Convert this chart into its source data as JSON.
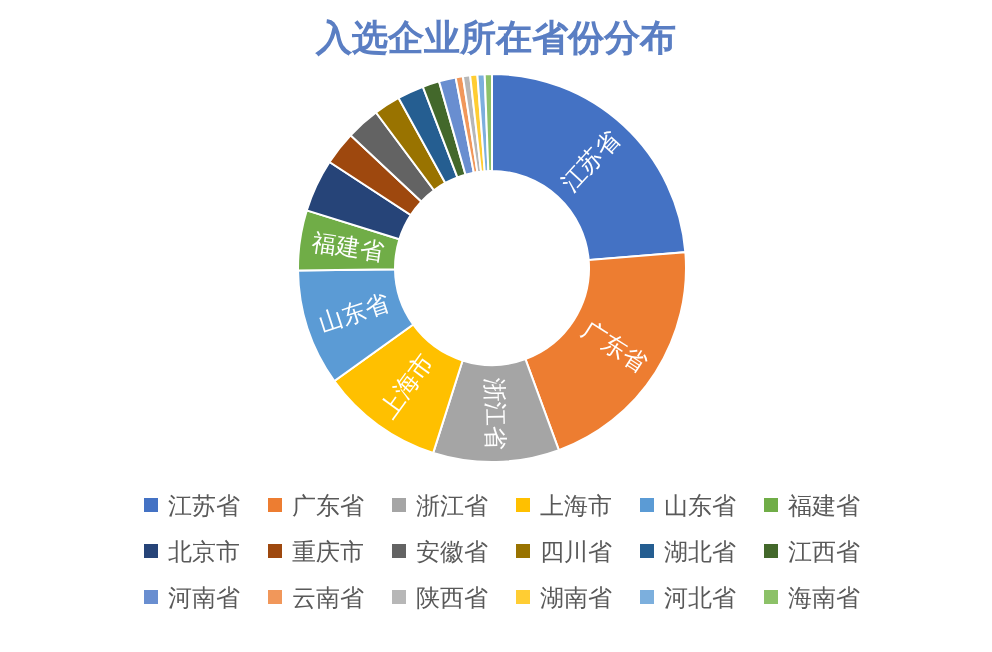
{
  "chart_data": {
    "type": "donut",
    "title": "入选企业所在省份分布",
    "categories": [
      "江苏省",
      "广东省",
      "浙江省",
      "上海市",
      "山东省",
      "福建省",
      "北京市",
      "重庆市",
      "安徽省",
      "四川省",
      "湖北省",
      "江西省",
      "河南省",
      "云南省",
      "陕西省",
      "湖南省",
      "河北省",
      "海南省"
    ],
    "values": [
      23.7,
      20.7,
      10.5,
      10.2,
      9.7,
      5,
      4.4,
      2.8,
      2.8,
      2.2,
      2.2,
      1.4,
      1.4,
      0.6,
      0.6,
      0.6,
      0.6,
      0.6
    ],
    "colors": [
      "#4472c4",
      "#ed7d31",
      "#a5a5a5",
      "#ffc000",
      "#5b9bd5",
      "#70ad47",
      "#264478",
      "#9e480e",
      "#636363",
      "#997300",
      "#255e91",
      "#43682b",
      "#698ed0",
      "#f1975a",
      "#b7b7b7",
      "#ffcd33",
      "#7cafdd",
      "#8cc168"
    ],
    "value_labels": [
      "江苏省",
      "广东省",
      "浙江省",
      "上海市",
      "山东省",
      "福建省",
      null,
      null,
      null,
      null,
      null,
      null,
      null,
      null,
      null,
      null,
      null,
      null
    ],
    "legend": "bottom"
  }
}
